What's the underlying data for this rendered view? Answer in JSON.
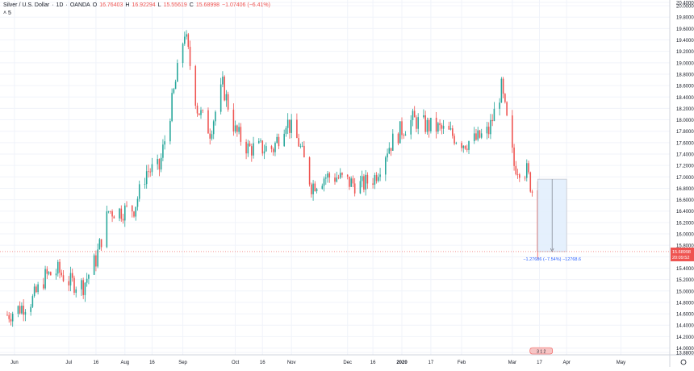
{
  "legend": {
    "symbol": "Silver / U.S. Dollar",
    "interval": "1D",
    "broker": "OANDA",
    "open_label": "O",
    "open": "16.76403",
    "high_label": "H",
    "high": "16.92294",
    "low_label": "L",
    "low": "15.55619",
    "close_label": "C",
    "close": "15.68998",
    "change": "−1.07406 (−6.41%)",
    "collapse_glyph": "˄",
    "collapse_count": "5"
  },
  "colors": {
    "up": "#26a69a",
    "down": "#ef5350",
    "grid": "#f0f3fa",
    "axis_text": "#131722",
    "price_line": "#ef5350",
    "measure_fill": "#e3effd",
    "measure_border": "#b2b5be",
    "measure_text": "#2962ff"
  },
  "chart_data": {
    "type": "candlestick",
    "price_axis": {
      "min": 13.88,
      "max": 20.1,
      "ticks": [
        "20.40000",
        "20.00000",
        "19.80000",
        "19.60000",
        "19.40000",
        "19.20000",
        "19.00000",
        "18.80000",
        "18.60000",
        "18.40000",
        "18.20000",
        "18.00000",
        "17.80000",
        "17.60000",
        "17.40000",
        "17.20000",
        "17.00000",
        "16.80000",
        "16.60000",
        "16.40000",
        "16.20000",
        "16.00000",
        "15.80000",
        "15.60000",
        "15.40000",
        "15.20000",
        "15.00000",
        "14.80000",
        "14.60000",
        "14.40000",
        "14.20000",
        "14.00000",
        "13.88000"
      ]
    },
    "time_axis": {
      "labels": [
        {
          "text": "Jun",
          "date": "2019-06-01"
        },
        {
          "text": "Jul",
          "date": "2019-07-01"
        },
        {
          "text": "16",
          "date": "2019-07-16"
        },
        {
          "text": "Aug",
          "date": "2019-08-01"
        },
        {
          "text": "16",
          "date": "2019-08-16"
        },
        {
          "text": "Sep",
          "date": "2019-09-02"
        },
        {
          "text": "Oct",
          "date": "2019-10-01"
        },
        {
          "text": "16",
          "date": "2019-10-16"
        },
        {
          "text": "Nov",
          "date": "2019-11-01"
        },
        {
          "text": "Dec",
          "date": "2019-12-02"
        },
        {
          "text": "16",
          "date": "2019-12-16"
        },
        {
          "text": "2020",
          "date": "2020-01-01"
        },
        {
          "text": "17",
          "date": "2020-01-17"
        },
        {
          "text": "Feb",
          "date": "2020-02-03"
        },
        {
          "text": "Mar",
          "date": "2020-03-02"
        },
        {
          "text": "17",
          "date": "2020-03-17"
        },
        {
          "text": "Apr",
          "date": "2020-04-01"
        },
        {
          "text": "May",
          "date": "2020-05-01"
        }
      ]
    },
    "closes": [
      {
        "date": "2019-05-28",
        "close": 14.58
      },
      {
        "date": "2019-06-04",
        "close": 14.7
      },
      {
        "date": "2019-06-11",
        "close": 14.85
      },
      {
        "date": "2019-06-18",
        "close": 15.25
      },
      {
        "date": "2019-06-25",
        "close": 15.35
      },
      {
        "date": "2019-07-02",
        "close": 15.15
      },
      {
        "date": "2019-07-09",
        "close": 15.1
      },
      {
        "date": "2019-07-16",
        "close": 15.55
      },
      {
        "date": "2019-07-23",
        "close": 16.4
      },
      {
        "date": "2019-07-30",
        "close": 16.4
      },
      {
        "date": "2019-08-06",
        "close": 16.45
      },
      {
        "date": "2019-08-13",
        "close": 17.1
      },
      {
        "date": "2019-08-20",
        "close": 17.15
      },
      {
        "date": "2019-08-27",
        "close": 18.3
      },
      {
        "date": "2019-09-03",
        "close": 19.55
      },
      {
        "date": "2019-09-10",
        "close": 18.2
      },
      {
        "date": "2019-09-17",
        "close": 17.8
      },
      {
        "date": "2019-09-24",
        "close": 18.6
      },
      {
        "date": "2019-10-01",
        "close": 17.8
      },
      {
        "date": "2019-10-08",
        "close": 17.5
      },
      {
        "date": "2019-10-15",
        "close": 17.5
      },
      {
        "date": "2019-10-22",
        "close": 17.5
      },
      {
        "date": "2019-10-29",
        "close": 18.0
      },
      {
        "date": "2019-11-05",
        "close": 17.6
      },
      {
        "date": "2019-11-12",
        "close": 16.85
      },
      {
        "date": "2019-11-19",
        "close": 17.0
      },
      {
        "date": "2019-11-26",
        "close": 17.0
      },
      {
        "date": "2019-12-03",
        "close": 16.9
      },
      {
        "date": "2019-12-10",
        "close": 16.85
      },
      {
        "date": "2019-12-17",
        "close": 17.0
      },
      {
        "date": "2019-12-24",
        "close": 17.5
      },
      {
        "date": "2019-12-31",
        "close": 17.8
      },
      {
        "date": "2020-01-07",
        "close": 18.0
      },
      {
        "date": "2020-01-14",
        "close": 17.9
      },
      {
        "date": "2020-01-21",
        "close": 17.85
      },
      {
        "date": "2020-01-28",
        "close": 17.75
      },
      {
        "date": "2020-02-04",
        "close": 17.6
      },
      {
        "date": "2020-02-11",
        "close": 17.65
      },
      {
        "date": "2020-02-18",
        "close": 17.8
      },
      {
        "date": "2020-02-25",
        "close": 18.55
      },
      {
        "date": "2020-03-03",
        "close": 17.2
      },
      {
        "date": "2020-03-10",
        "close": 17.1
      },
      {
        "date": "2020-03-13",
        "close": 16.76
      },
      {
        "date": "2020-03-16",
        "close": 15.69
      }
    ],
    "current_price": {
      "value": 15.68998,
      "label": "15.68998",
      "countdown": "20:09:52"
    },
    "measure": {
      "from_date": "2020-03-16",
      "to_date": "2020-04-01",
      "from_price": 16.96,
      "to_price": 15.69,
      "label": "−1.27686 (−7.54%) −12768.6"
    },
    "grid": true,
    "legend_position": "top-left"
  },
  "bottom_badge": "3 1 2"
}
